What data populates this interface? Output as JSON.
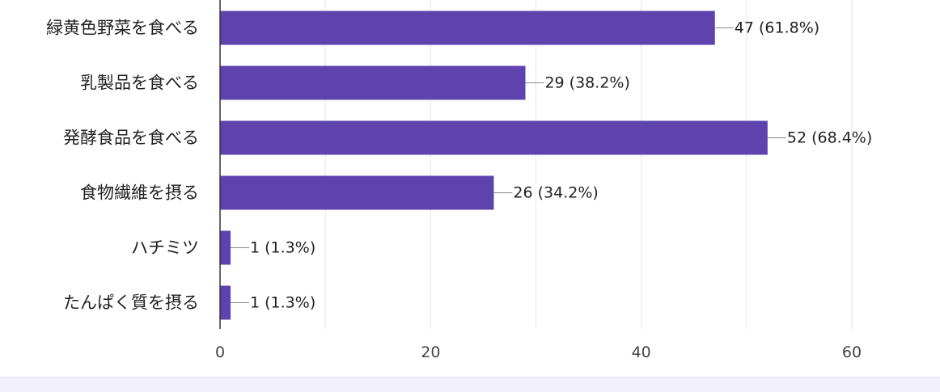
{
  "chart_data": {
    "type": "bar",
    "orientation": "horizontal",
    "title": "",
    "xlabel": "",
    "ylabel": "",
    "categories": [
      "緑黄色野菜を食べる",
      "乳製品を食べる",
      "発酵食品を食べる",
      "食物繊維を摂る",
      "ハチミツ",
      "たんぱく質を摂る"
    ],
    "values": [
      47,
      29,
      52,
      26,
      1,
      1
    ],
    "data_labels": [
      "47 (61.8%)",
      "29 (38.2%)",
      "52 (68.4%)",
      "26 (34.2%)",
      "1 (1.3%)",
      "1 (1.3%)"
    ],
    "xlim": [
      0,
      60
    ],
    "xticks": [
      0,
      20,
      40,
      60
    ],
    "grid": true,
    "legend": "none"
  },
  "colors": {
    "bar": "#5e43ae",
    "grid": "#e6e6e6",
    "axis": "#333333",
    "text": "#222222",
    "leader": "#888888"
  }
}
